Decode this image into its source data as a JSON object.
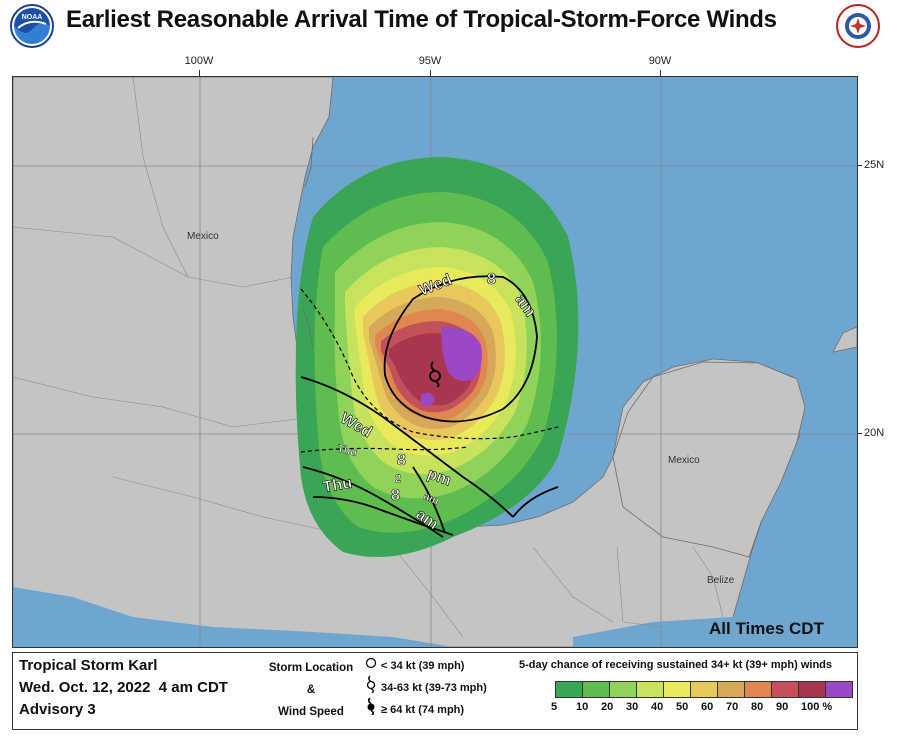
{
  "title": "Earliest Reasonable Arrival Time of Tropical-Storm-Force Winds",
  "logos": {
    "left": "noaa-logo",
    "right": "nws-logo"
  },
  "map": {
    "longitude_labels": [
      "100W",
      "95W",
      "90W"
    ],
    "latitude_labels": [
      "25N",
      "20N"
    ],
    "land_labels": [
      "Mexico",
      "Mexico",
      "Belize"
    ],
    "arrival_labels": [
      {
        "text": "Wed"
      },
      {
        "text": "8"
      },
      {
        "text": "am"
      },
      {
        "text": "Wed"
      },
      {
        "text": "8"
      },
      {
        "text": "pm"
      },
      {
        "text": "Thu"
      },
      {
        "text": "2"
      },
      {
        "text": "am"
      },
      {
        "text": "Thu"
      },
      {
        "text": "8"
      },
      {
        "text": "am"
      }
    ],
    "timezone_note": "All Times CDT",
    "colors": {
      "ocean": "#6fa6cf",
      "land": "#c4c4c4",
      "p5": "#3aa655",
      "p10": "#5fbd4f",
      "p20": "#8fd35a",
      "p30": "#c7e35d",
      "p40": "#e9ea5b",
      "p50": "#e8c85a",
      "p60": "#d6a85a",
      "p70": "#e0874f",
      "p80": "#c4505a",
      "p90": "#a8364f",
      "p100": "#9b48c4"
    }
  },
  "legend": {
    "storm_name": "Tropical Storm Karl",
    "date": "Wed. Oct. 12, 2022  4 am CDT",
    "advisory": "Advisory 3",
    "storm_location_label": "Storm Location",
    "amp": "&",
    "wind_speed_label": "Wind Speed",
    "symbols": [
      {
        "icon": "circle-icon",
        "text": "< 34 kt (39 mph)"
      },
      {
        "icon": "tropical-storm-icon",
        "text": "34-63 kt (39-73 mph)"
      },
      {
        "icon": "hurricane-icon",
        "text": "≥ 64 kt (74 mph)"
      }
    ],
    "probability_title": "5-day chance of receiving sustained 34+ kt (39+ mph) winds",
    "scale_colors": [
      "#3aa655",
      "#5fbd4f",
      "#8fd35a",
      "#c7e35d",
      "#e9ea5b",
      "#e8c85a",
      "#d6a85a",
      "#e0874f",
      "#c4505a",
      "#a8364f",
      "#9b48c4"
    ],
    "scale_labels": [
      "5",
      "10",
      "20",
      "30",
      "40",
      "50",
      "60",
      "70",
      "80",
      "90",
      "100 %"
    ]
  }
}
